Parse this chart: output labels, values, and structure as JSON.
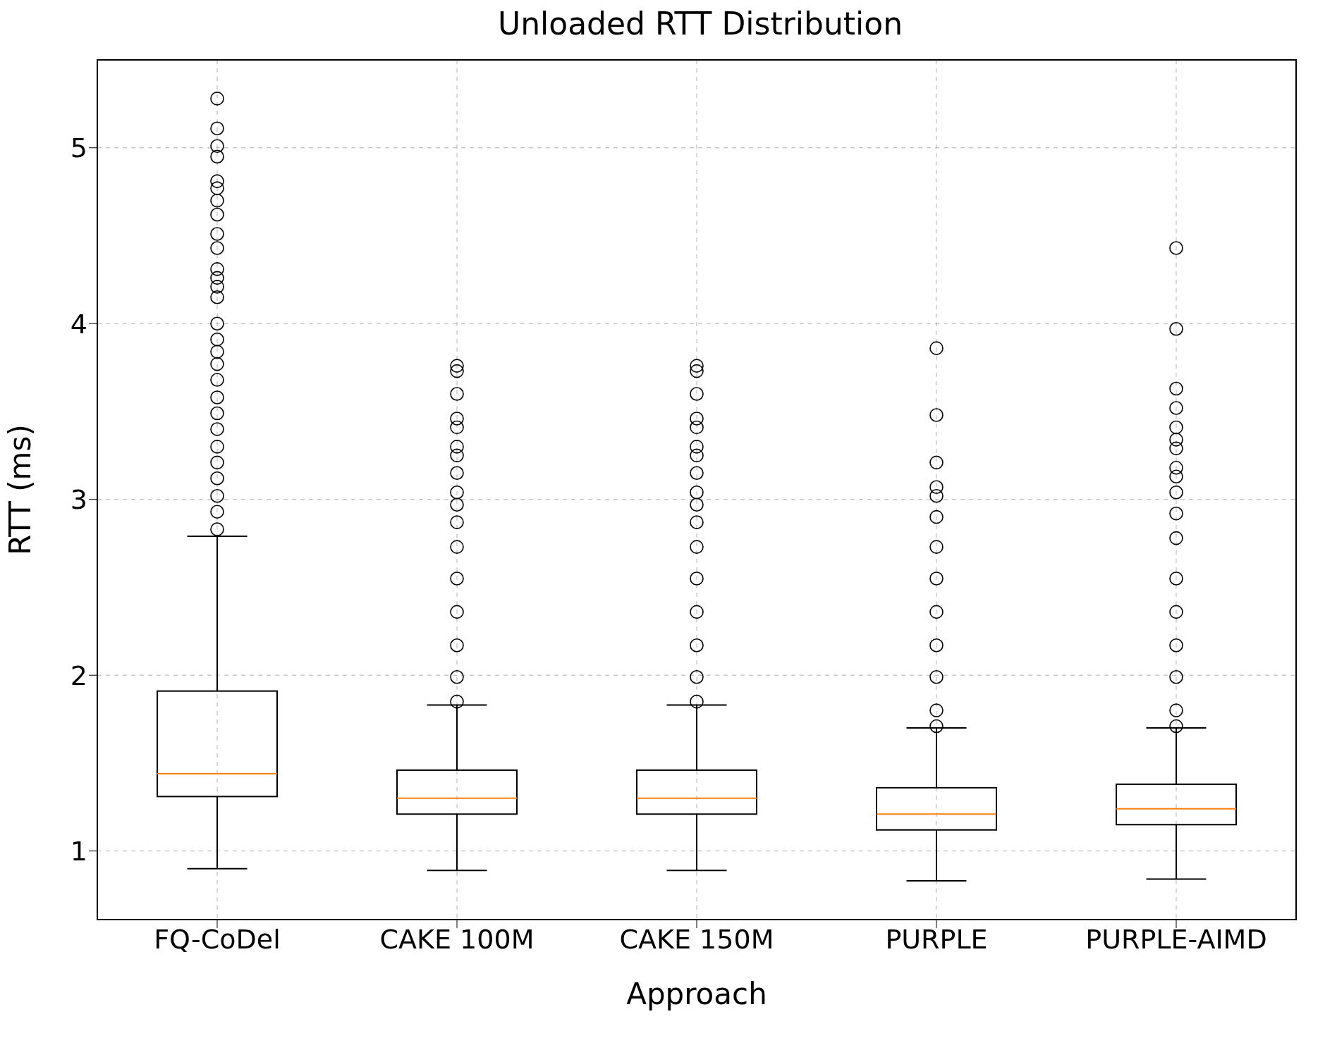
{
  "chart_data": {
    "type": "box",
    "title": "Unloaded RTT Distribution",
    "xlabel": "Approach",
    "ylabel": "RTT (ms)",
    "categories": [
      "FQ-CoDel",
      "CAKE 100M",
      "CAKE 150M",
      "PURPLE",
      "PURPLE-AIMD"
    ],
    "boxes": [
      {
        "low": 0.9,
        "q1": 1.31,
        "median": 1.44,
        "q3": 1.91,
        "high": 2.79,
        "outliers": [
          5.28,
          5.11,
          5.01,
          4.95,
          4.81,
          4.77,
          4.7,
          4.62,
          4.51,
          4.43,
          4.31,
          4.26,
          4.21,
          4.15,
          4.0,
          3.91,
          3.84,
          3.77,
          3.68,
          3.58,
          3.49,
          3.4,
          3.3,
          3.21,
          3.12,
          3.02,
          2.93,
          2.83
        ]
      },
      {
        "low": 0.89,
        "q1": 1.21,
        "median": 1.3,
        "q3": 1.46,
        "high": 1.83,
        "outliers": [
          3.76,
          3.73,
          3.6,
          3.46,
          3.41,
          3.3,
          3.25,
          3.15,
          3.04,
          2.97,
          2.87,
          2.73,
          2.55,
          2.36,
          2.17,
          1.99,
          1.85
        ]
      },
      {
        "low": 0.89,
        "q1": 1.21,
        "median": 1.3,
        "q3": 1.46,
        "high": 1.83,
        "outliers": [
          3.76,
          3.73,
          3.6,
          3.46,
          3.41,
          3.3,
          3.25,
          3.15,
          3.04,
          2.97,
          2.87,
          2.73,
          2.55,
          2.36,
          2.17,
          1.99,
          1.85
        ]
      },
      {
        "low": 0.83,
        "q1": 1.12,
        "median": 1.21,
        "q3": 1.36,
        "high": 1.7,
        "outliers": [
          3.86,
          3.48,
          3.21,
          3.07,
          3.02,
          2.9,
          2.73,
          2.55,
          2.36,
          2.17,
          1.99,
          1.8,
          1.71
        ]
      },
      {
        "low": 0.84,
        "q1": 1.15,
        "median": 1.24,
        "q3": 1.38,
        "high": 1.7,
        "outliers": [
          4.43,
          3.97,
          3.63,
          3.52,
          3.41,
          3.34,
          3.29,
          3.18,
          3.13,
          3.04,
          2.92,
          2.78,
          2.55,
          2.36,
          2.17,
          1.99,
          1.8,
          1.71
        ]
      }
    ],
    "ylim": [
      0.61,
      5.5
    ],
    "yticks": [
      1,
      2,
      3,
      4,
      5
    ],
    "grid": true
  }
}
